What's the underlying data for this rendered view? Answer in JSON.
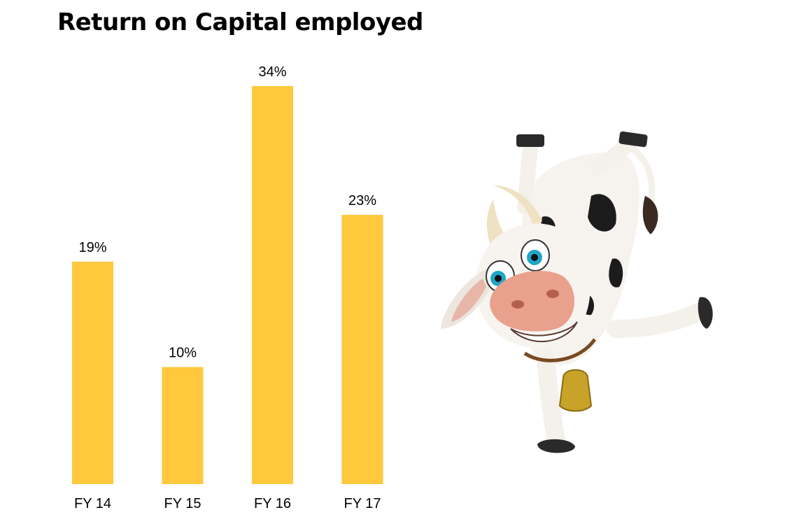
{
  "chart_data": {
    "type": "bar",
    "title": "Return on Capital employed",
    "categories": [
      "FY 14",
      "FY 15",
      "FY 16",
      "FY 17"
    ],
    "values": [
      19,
      10,
      34,
      23
    ],
    "data_labels": [
      "19%",
      "10%",
      "34%",
      "23%"
    ],
    "unit": "%",
    "ylim": [
      0,
      34
    ],
    "grid": false,
    "bar_color": "#FFC83D"
  },
  "colors": {
    "bar": "#FFC83D",
    "text": "#000000"
  },
  "illustration": {
    "icon": "cartoon-cow-icon"
  }
}
